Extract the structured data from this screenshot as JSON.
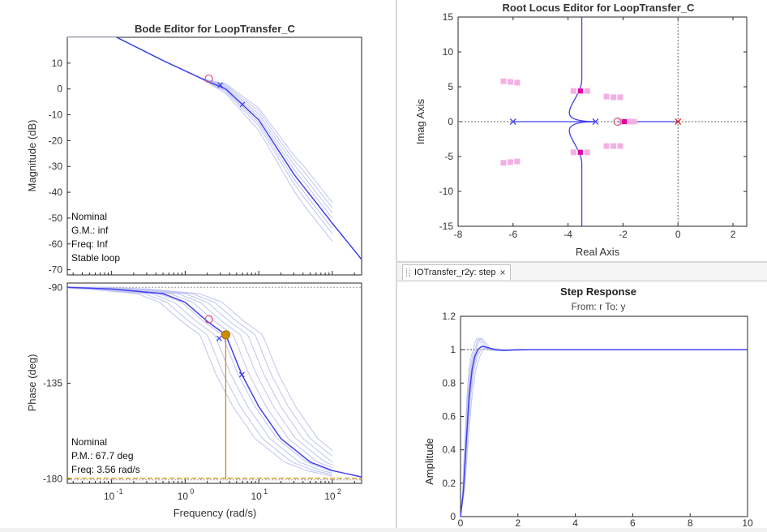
{
  "colors": {
    "main": "#4040f0",
    "uncertain": "#c0c4f0",
    "zero_marker": "#e05070",
    "pole_marker": "#e000a0",
    "pink_square": "#f4b0e4",
    "orange": "#d08c00",
    "gain_pole": "#e02020"
  },
  "bode": {
    "title": "Bode Editor for LoopTransfer_C",
    "magnitude": {
      "ylabel": "Magnitude (dB)",
      "yticks": [
        "10",
        "0",
        "-10",
        "-20",
        "-30",
        "-40",
        "-50",
        "-60",
        "-70"
      ],
      "annotation": [
        "Nominal",
        "G.M.: inf",
        "Freq: Inf",
        "Stable loop"
      ]
    },
    "phase": {
      "ylabel": "Phase (deg)",
      "yticks": [
        "-90",
        "-135",
        "-180"
      ],
      "annotation": [
        "Nominal",
        "P.M.: 67.7 deg",
        "Freq: 3.56 rad/s"
      ]
    },
    "xlabel": "Frequency (rad/s)",
    "xtick_base": "10",
    "xtick_exponents": [
      "-1",
      "0",
      "1",
      "2"
    ]
  },
  "root_locus": {
    "title": "Root Locus Editor for LoopTransfer_C",
    "xlabel": "Real Axis",
    "ylabel": "Imag Axis",
    "xticks": [
      "-8",
      "-6",
      "-4",
      "-2",
      "0",
      "2"
    ],
    "yticks": [
      "15",
      "10",
      "5",
      "0",
      "-5",
      "-10",
      "-15"
    ]
  },
  "step_tab": {
    "label": "IOTransfer_r2y: step",
    "close": "×"
  },
  "step": {
    "title": "Step Response",
    "subtitle": "From: r  To: y",
    "ylabel": "Amplitude",
    "yticks": [
      "1.2",
      "1",
      "0.8",
      "0.6",
      "0.4",
      "0.2",
      "0"
    ],
    "xticks": [
      "0",
      "2",
      "4",
      "6",
      "8",
      "10"
    ]
  },
  "chart_data": [
    {
      "type": "line",
      "plot": "bode-magnitude",
      "x_scale": "log",
      "xlim": [
        0.025,
        250
      ],
      "ylim": [
        -72,
        20
      ],
      "series": [
        {
          "x": [
            0.025,
            0.1,
            0.5,
            1,
            2,
            3.56,
            10,
            30,
            100,
            250
          ],
          "y": [
            28,
            21,
            11,
            7,
            3,
            0,
            -12,
            -33,
            -52,
            -66
          ]
        }
      ],
      "markers": [
        {
          "kind": "zero",
          "x": 2.1,
          "y": 4
        },
        {
          "kind": "pole",
          "x": 3.0,
          "y": 1.5
        },
        {
          "kind": "pole",
          "x": 6.0,
          "y": -6
        }
      ]
    },
    {
      "type": "line",
      "plot": "bode-phase",
      "x_scale": "log",
      "xlim": [
        0.025,
        250
      ],
      "ylim": [
        -182,
        -88
      ],
      "series": [
        {
          "x": [
            0.025,
            0.1,
            0.5,
            1,
            2,
            3.56,
            5.9,
            10,
            20,
            50,
            100,
            250
          ],
          "y": [
            -90,
            -90.8,
            -93,
            -97,
            -106,
            -112.3,
            -131,
            -146,
            -161,
            -172,
            -176,
            -179
          ]
        }
      ],
      "markers": [
        {
          "kind": "zero",
          "x": 2.1,
          "y": -105
        },
        {
          "kind": "pole",
          "x": 2.9,
          "y": -114
        },
        {
          "kind": "pole",
          "x": 5.9,
          "y": -131
        },
        {
          "kind": "margin",
          "x": 3.56,
          "y": -112.3
        }
      ]
    },
    {
      "type": "scatter",
      "plot": "root-locus",
      "xlim": [
        -8,
        2.5
      ],
      "ylim": [
        -15,
        15
      ],
      "open_loop_poles": [
        [
          -6.0,
          0
        ],
        [
          -3.0,
          0
        ],
        [
          0,
          0
        ]
      ],
      "zeros": [
        [
          -2.2,
          0
        ]
      ],
      "closed_loop_poles": [
        [
          -3.55,
          4.4
        ],
        [
          -3.55,
          -4.4
        ],
        [
          -1.95,
          0
        ]
      ]
    },
    {
      "type": "line",
      "plot": "step-response",
      "xlim": [
        0,
        10
      ],
      "ylim": [
        0,
        1.2
      ],
      "series": [
        {
          "x": [
            0,
            0.1,
            0.2,
            0.3,
            0.4,
            0.5,
            0.6,
            0.7,
            0.8,
            0.9,
            1.0,
            1.2,
            1.5,
            2,
            3,
            10
          ],
          "y": [
            0,
            0.15,
            0.45,
            0.72,
            0.88,
            0.96,
            1.0,
            1.015,
            1.02,
            1.015,
            1.01,
            1.0,
            0.995,
            1.0,
            1.0,
            1.0
          ]
        }
      ],
      "reference": 1.0
    }
  ]
}
